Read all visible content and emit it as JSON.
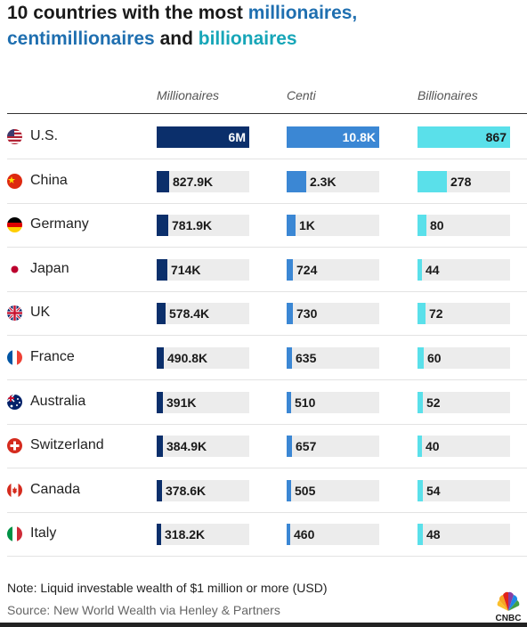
{
  "title": {
    "line1_plain": "10 countries with the most ",
    "line1_blue": "millionaires,",
    "line2_blue": "centimillionaires",
    "line2_plain": " and ",
    "line2_cyan": "billionaires"
  },
  "colors": {
    "millionaires": "#0b2f6b",
    "centi": "#3b87d4",
    "billionaires": "#5ae0ea",
    "track": "#ececec",
    "title_blue": "#1f6fb0",
    "title_cyan": "#17a6b8"
  },
  "chart_data": {
    "type": "bar",
    "categories": [
      "U.S.",
      "China",
      "Germany",
      "Japan",
      "UK",
      "France",
      "Australia",
      "Switzerland",
      "Canada",
      "Italy"
    ],
    "flags": [
      "us-flag-icon",
      "china-flag-icon",
      "germany-flag-icon",
      "japan-flag-icon",
      "uk-flag-icon",
      "france-flag-icon",
      "australia-flag-icon",
      "switzerland-flag-icon",
      "canada-flag-icon",
      "italy-flag-icon"
    ],
    "series": [
      {
        "name": "Millionaires",
        "values": [
          6000000,
          827900,
          781900,
          714000,
          578400,
          490800,
          391000,
          384900,
          378600,
          318200
        ],
        "labels": [
          "6M",
          "827.9K",
          "781.9K",
          "714K",
          "578.4K",
          "490.8K",
          "391K",
          "384.9K",
          "378.6K",
          "318.2K"
        ]
      },
      {
        "name": "Centi",
        "values": [
          10800,
          2300,
          1000,
          724,
          730,
          635,
          510,
          657,
          505,
          460
        ],
        "labels": [
          "10.8K",
          "2.3K",
          "1K",
          "724",
          "730",
          "635",
          "510",
          "657",
          "505",
          "460"
        ]
      },
      {
        "name": "Billionaires",
        "values": [
          867,
          278,
          80,
          44,
          72,
          60,
          52,
          40,
          54,
          48
        ],
        "labels": [
          "867",
          "278",
          "80",
          "44",
          "72",
          "60",
          "52",
          "40",
          "54",
          "48"
        ]
      }
    ]
  },
  "footer": {
    "note": "Note: Liquid investable wealth of $1 million or more (USD)",
    "source": "Source: New World Wealth via Henley & Partners",
    "logo_text": "CNBC"
  }
}
